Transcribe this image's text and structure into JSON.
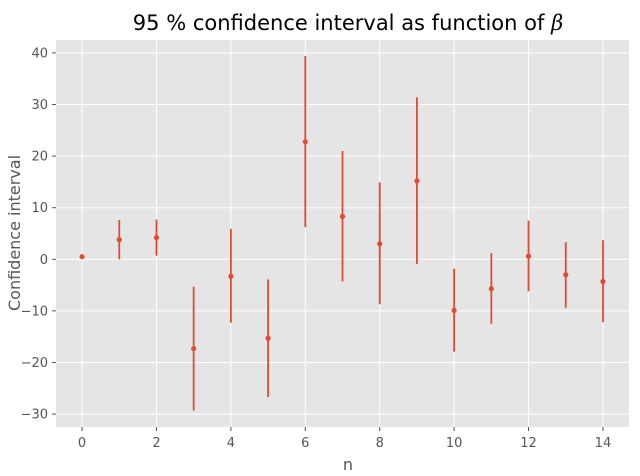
{
  "chart_data": {
    "type": "scatter",
    "title": "95 % confidence interval as function of ",
    "title_symbol": "β",
    "xlabel": "n",
    "ylabel": "Confidence interval",
    "xlim": [
      -0.7,
      14.7
    ],
    "ylim": [
      -32.5,
      42.5
    ],
    "xticks": [
      0,
      2,
      4,
      6,
      8,
      10,
      12,
      14
    ],
    "yticks": [
      -30,
      -20,
      -10,
      0,
      10,
      20,
      30,
      40
    ],
    "grid": true,
    "legend": "none",
    "colors": {
      "series": "#E24A33",
      "plot_background": "#E5E5E5",
      "grid": "#FFFFFF",
      "tick_text": "#555555"
    },
    "series": [
      {
        "x": [
          0,
          1,
          2,
          3,
          4,
          5,
          6,
          7,
          8,
          9,
          10,
          11,
          12,
          13,
          14
        ],
        "y": [
          0.5,
          3.8,
          4.2,
          -17.3,
          -3.3,
          -15.3,
          22.8,
          8.3,
          3.0,
          15.2,
          -9.9,
          -5.7,
          0.6,
          -3.0,
          -4.3
        ],
        "lower": [
          0.5,
          0.0,
          0.7,
          -29.3,
          -12.3,
          -26.7,
          6.2,
          -4.3,
          -8.7,
          -0.9,
          -17.9,
          -12.5,
          -6.2,
          -9.4,
          -12.2
        ],
        "upper": [
          0.5,
          7.6,
          7.7,
          -5.3,
          5.9,
          -3.9,
          39.4,
          21.0,
          14.9,
          31.4,
          -1.8,
          1.2,
          7.5,
          3.3,
          3.7
        ]
      }
    ]
  }
}
